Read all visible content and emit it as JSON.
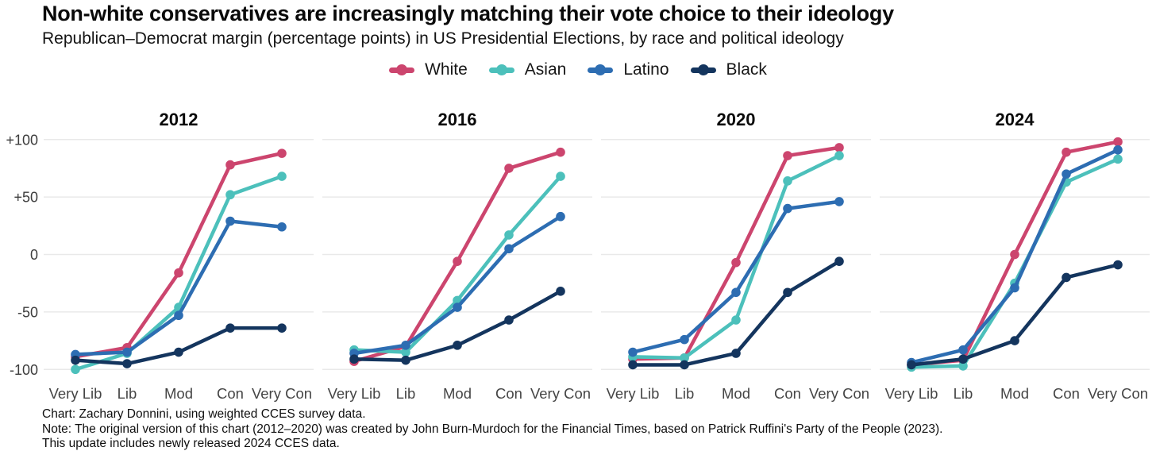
{
  "header": {
    "title": "Non-white conservatives are increasingly matching their vote choice to their ideology",
    "subtitle": "Republican–Democrat margin (percentage points) in US Presidential Elections, by race and political ideology"
  },
  "colors": {
    "white_series": "#cc456e",
    "asian_series": "#4cc0bb",
    "latino_series": "#2d6db2",
    "black_series": "#14355e",
    "gridline": "#e9e9e9",
    "axis_text": "#3d3d3d"
  },
  "legend": {
    "items": [
      {
        "label": "White",
        "color": "#cc456e"
      },
      {
        "label": "Asian",
        "color": "#4cc0bb"
      },
      {
        "label": "Latino",
        "color": "#2d6db2"
      },
      {
        "label": "Black",
        "color": "#14355e"
      }
    ]
  },
  "chart_data": {
    "type": "line",
    "title": "Non-white conservatives are increasingly matching their vote choice to their ideology",
    "subtitle": "Republican–Democrat margin (percentage points) in US Presidential Elections, by race and political ideology",
    "categories": [
      "Very Lib",
      "Lib",
      "Mod",
      "Con",
      "Very Con"
    ],
    "ylim": [
      -100,
      100
    ],
    "grid": true,
    "legend_position": "top",
    "yticks": [
      {
        "value": 100,
        "label": "+100"
      },
      {
        "value": 50,
        "label": "+50"
      },
      {
        "value": 0,
        "label": "0"
      },
      {
        "value": -50,
        "label": "-50"
      },
      {
        "value": -100,
        "label": "-100"
      }
    ],
    "panels": [
      {
        "title": "2012",
        "series": [
          {
            "name": "White",
            "color": "#cc456e",
            "values": [
              -89,
              -81,
              -16,
              78,
              88
            ]
          },
          {
            "name": "Asian",
            "color": "#4cc0bb",
            "values": [
              -100,
              -86,
              -46,
              52,
              68
            ]
          },
          {
            "name": "Latino",
            "color": "#2d6db2",
            "values": [
              -87,
              -85,
              -53,
              29,
              24
            ]
          },
          {
            "name": "Black",
            "color": "#14355e",
            "values": [
              -92,
              -95,
              -85,
              -64,
              -64
            ]
          }
        ]
      },
      {
        "title": "2016",
        "series": [
          {
            "name": "White",
            "color": "#cc456e",
            "values": [
              -93,
              -80,
              -6,
              75,
              89
            ]
          },
          {
            "name": "Asian",
            "color": "#4cc0bb",
            "values": [
              -83,
              -85,
              -40,
              17,
              68
            ]
          },
          {
            "name": "Latino",
            "color": "#2d6db2",
            "values": [
              -86,
              -79,
              -46,
              5,
              33
            ]
          },
          {
            "name": "Black",
            "color": "#14355e",
            "values": [
              -91,
              -92,
              -79,
              -57,
              -32
            ]
          }
        ]
      },
      {
        "title": "2020",
        "series": [
          {
            "name": "White",
            "color": "#cc456e",
            "values": [
              -91,
              -90,
              -7,
              86,
              93
            ]
          },
          {
            "name": "Asian",
            "color": "#4cc0bb",
            "values": [
              -89,
              -90,
              -57,
              64,
              86
            ]
          },
          {
            "name": "Latino",
            "color": "#2d6db2",
            "values": [
              -85,
              -74,
              -33,
              40,
              46
            ]
          },
          {
            "name": "Black",
            "color": "#14355e",
            "values": [
              -96,
              -96,
              -86,
              -33,
              -6
            ]
          }
        ]
      },
      {
        "title": "2024",
        "series": [
          {
            "name": "White",
            "color": "#cc456e",
            "values": [
              -96,
              -92,
              0,
              89,
              98
            ]
          },
          {
            "name": "Asian",
            "color": "#4cc0bb",
            "values": [
              -98,
              -97,
              -25,
              63,
              83
            ]
          },
          {
            "name": "Latino",
            "color": "#2d6db2",
            "values": [
              -94,
              -83,
              -29,
              70,
              91
            ]
          },
          {
            "name": "Black",
            "color": "#14355e",
            "values": [
              -96,
              -91,
              -75,
              -20,
              -9
            ]
          }
        ]
      }
    ]
  },
  "footer": {
    "lines": [
      "Chart: Zachary Donnini, using weighted CCES survey data.",
      "Note: The original version of this chart (2012–2020) was created by John Burn-Murdoch for the Financial Times, based on Patrick Ruffini's Party of the People (2023).",
      "This update includes newly released 2024 CCES data."
    ]
  }
}
